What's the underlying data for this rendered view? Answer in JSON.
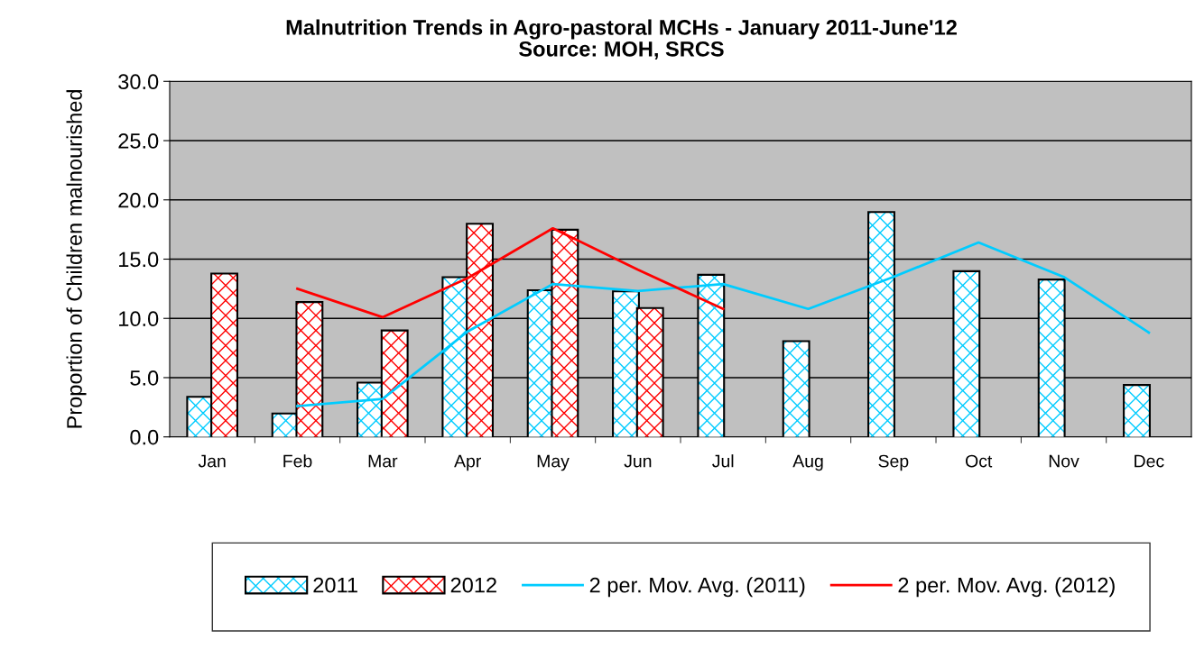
{
  "chart_data": {
    "type": "bar",
    "title": "Malnutrition Trends in Agro-pastoral MCHs - January 2011-June'12",
    "subtitle": "Source: MOH, SRCS",
    "ylabel": "Proportion of Children malnourished",
    "categories": [
      "Jan",
      "Feb",
      "Mar",
      "Apr",
      "May",
      "Jun",
      "Jul",
      "Aug",
      "Sep",
      "Oct",
      "Nov",
      "Dec"
    ],
    "series": [
      {
        "name": "2011",
        "color": "#00ccff",
        "values": [
          3.3,
          1.9,
          4.5,
          13.4,
          12.3,
          12.2,
          13.6,
          8.0,
          18.9,
          13.9,
          13.2,
          4.3
        ]
      },
      {
        "name": "2012",
        "color": "#ff0000",
        "values": [
          13.7,
          11.3,
          8.9,
          17.9,
          17.4,
          10.8,
          null,
          null,
          null,
          null,
          null,
          null
        ]
      },
      {
        "name": "2 per. Mov. Avg. (2011)",
        "type": "line",
        "color": "#00ccff",
        "values": [
          null,
          2.6,
          3.2,
          8.9,
          12.9,
          12.3,
          12.9,
          10.8,
          13.5,
          16.4,
          13.5,
          8.8
        ]
      },
      {
        "name": "2 per. Mov. Avg. (2012)",
        "type": "line",
        "color": "#ff0000",
        "values": [
          null,
          12.5,
          10.1,
          13.4,
          17.6,
          14.1,
          10.8,
          null,
          null,
          null,
          null,
          null
        ]
      }
    ],
    "ylim": [
      0,
      30
    ],
    "yticks": [
      {
        "value": 0,
        "label": "0.0"
      },
      {
        "value": 5,
        "label": "5.0"
      },
      {
        "value": 10,
        "label": "10.0"
      },
      {
        "value": 15,
        "label": "15.0"
      },
      {
        "value": 20,
        "label": "20.0"
      },
      {
        "value": 25,
        "label": "25.0"
      },
      {
        "value": 30,
        "label": "30.0"
      }
    ],
    "grid": "y",
    "legend": "bottom",
    "marker": "none",
    "line_style": "solid"
  }
}
